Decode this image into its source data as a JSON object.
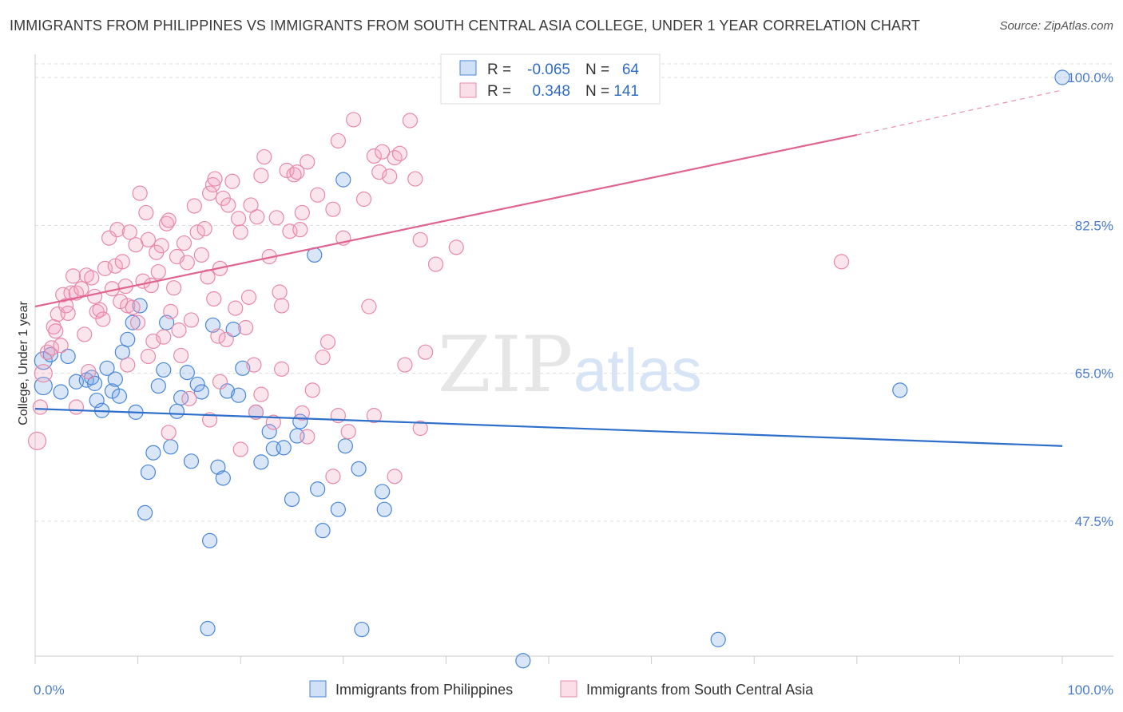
{
  "title": "IMMIGRANTS FROM PHILIPPINES VS IMMIGRANTS FROM SOUTH CENTRAL ASIA COLLEGE, UNDER 1 YEAR CORRELATION CHART",
  "source": "Source: ZipAtlas.com",
  "watermark": {
    "zip": "ZIP",
    "atlas": "atlas"
  },
  "colors": {
    "blue": "#4a86d8",
    "blue_fill": "rgba(120,165,230,0.28)",
    "blue_line": "#2f6fcc",
    "pink": "#e889a8",
    "pink_fill": "rgba(240,160,190,0.28)",
    "pink_line": "#e0648f",
    "grid": "#dddddd",
    "tick_label": "#4a7cc9"
  },
  "legend": {
    "r_label": "R =",
    "n_label": "N =",
    "rows": [
      {
        "r": "-0.065",
        "n": "64"
      },
      {
        "r": "0.348",
        "n": "141"
      }
    ]
  },
  "chart_data": {
    "type": "scatter",
    "title": "IMMIGRANTS FROM PHILIPPINES VS IMMIGRANTS FROM SOUTH CENTRAL ASIA COLLEGE, UNDER 1 YEAR CORRELATION CHART",
    "xlabel": "",
    "ylabel": "College, Under 1 year",
    "xlim": [
      0,
      100
    ],
    "ylim": [
      32,
      102
    ],
    "x_tick_labels": [
      "0.0%",
      "100.0%"
    ],
    "y_ticks": [
      47.5,
      65.0,
      82.5,
      100.0
    ],
    "y_tick_labels": [
      "47.5%",
      "65.0%",
      "82.5%",
      "100.0%"
    ],
    "grid": true,
    "legend_position": "top-center",
    "series": [
      {
        "name": "Immigrants from Philippines",
        "color": "#4a86d8",
        "trend": {
          "x0": 0,
          "y0": 60.8,
          "x1": 100,
          "y1": 56.4
        },
        "points": [
          [
            0.8,
            66.5
          ],
          [
            0.8,
            63.5
          ],
          [
            1.5,
            67.2
          ],
          [
            2.5,
            62.8
          ],
          [
            3.2,
            67.0
          ],
          [
            4.0,
            64.0
          ],
          [
            5.0,
            64.2
          ],
          [
            5.5,
            64.5
          ],
          [
            5.8,
            63.8
          ],
          [
            6.0,
            61.8
          ],
          [
            6.5,
            60.6
          ],
          [
            7.0,
            65.6
          ],
          [
            7.5,
            62.9
          ],
          [
            7.8,
            64.3
          ],
          [
            8.2,
            62.3
          ],
          [
            8.5,
            67.5
          ],
          [
            9.5,
            71.0
          ],
          [
            9.8,
            60.4
          ],
          [
            10.2,
            73.0
          ],
          [
            10.7,
            48.5
          ],
          [
            11.0,
            53.3
          ],
          [
            11.5,
            55.6
          ],
          [
            12.5,
            65.4
          ],
          [
            12.8,
            71.0
          ],
          [
            13.2,
            56.3
          ],
          [
            13.8,
            60.5
          ],
          [
            14.2,
            62.1
          ],
          [
            14.8,
            65.1
          ],
          [
            15.2,
            54.6
          ],
          [
            15.8,
            63.7
          ],
          [
            16.2,
            62.8
          ],
          [
            17.0,
            45.2
          ],
          [
            17.3,
            70.7
          ],
          [
            17.8,
            53.9
          ],
          [
            18.3,
            52.6
          ],
          [
            18.7,
            62.9
          ],
          [
            19.3,
            70.2
          ],
          [
            19.8,
            62.4
          ],
          [
            20.2,
            65.6
          ],
          [
            21.5,
            60.4
          ],
          [
            22.0,
            54.5
          ],
          [
            22.8,
            58.1
          ],
          [
            23.2,
            56.1
          ],
          [
            24.2,
            56.2
          ],
          [
            25.0,
            50.1
          ],
          [
            25.5,
            57.6
          ],
          [
            25.8,
            59.3
          ],
          [
            27.2,
            79.0
          ],
          [
            27.5,
            51.3
          ],
          [
            28.0,
            46.4
          ],
          [
            29.5,
            48.9
          ],
          [
            30.0,
            87.9
          ],
          [
            30.2,
            56.4
          ],
          [
            31.5,
            53.7
          ],
          [
            33.8,
            51.0
          ],
          [
            34.0,
            48.9
          ],
          [
            16.8,
            34.8
          ],
          [
            31.8,
            34.7
          ],
          [
            47.5,
            31.0
          ],
          [
            66.5,
            33.5
          ],
          [
            84.2,
            63.0
          ],
          [
            100.0,
            100.0
          ],
          [
            12.0,
            63.5
          ],
          [
            9.0,
            69.0
          ]
        ]
      },
      {
        "name": "Immigrants from South Central Asia",
        "color": "#e889a8",
        "trend": {
          "x0": 0,
          "y0": 72.9,
          "x1": 80,
          "y1": 93.2,
          "x_dash_end": 100,
          "y_dash_end": 98.5
        },
        "points": [
          [
            0.2,
            57.0
          ],
          [
            0.5,
            61.0
          ],
          [
            0.8,
            65.0
          ],
          [
            1.2,
            67.5
          ],
          [
            1.6,
            68.0
          ],
          [
            1.8,
            70.5
          ],
          [
            2.0,
            70.0
          ],
          [
            2.2,
            72.0
          ],
          [
            2.5,
            68.3
          ],
          [
            2.7,
            74.3
          ],
          [
            3.0,
            73.0
          ],
          [
            3.2,
            72.1
          ],
          [
            3.5,
            74.5
          ],
          [
            3.7,
            76.5
          ],
          [
            4.0,
            74.5
          ],
          [
            4.5,
            75.0
          ],
          [
            4.8,
            69.6
          ],
          [
            5.0,
            76.6
          ],
          [
            5.2,
            65.2
          ],
          [
            5.5,
            76.3
          ],
          [
            5.8,
            74.1
          ],
          [
            6.0,
            72.3
          ],
          [
            6.3,
            72.5
          ],
          [
            6.6,
            71.4
          ],
          [
            6.8,
            77.4
          ],
          [
            7.2,
            81.0
          ],
          [
            7.5,
            75.0
          ],
          [
            7.8,
            77.7
          ],
          [
            8.0,
            82.0
          ],
          [
            8.3,
            73.5
          ],
          [
            8.5,
            78.2
          ],
          [
            8.8,
            75.3
          ],
          [
            9.0,
            73.0
          ],
          [
            9.2,
            81.7
          ],
          [
            9.5,
            72.8
          ],
          [
            9.8,
            80.2
          ],
          [
            10.0,
            71.0
          ],
          [
            10.2,
            86.3
          ],
          [
            10.5,
            75.9
          ],
          [
            10.8,
            84.0
          ],
          [
            11.0,
            80.8
          ],
          [
            11.3,
            75.4
          ],
          [
            11.5,
            68.8
          ],
          [
            11.8,
            79.3
          ],
          [
            12.0,
            77.0
          ],
          [
            12.3,
            80.1
          ],
          [
            12.5,
            69.3
          ],
          [
            12.8,
            82.7
          ],
          [
            13.0,
            83.1
          ],
          [
            13.2,
            72.3
          ],
          [
            13.5,
            75.1
          ],
          [
            13.8,
            78.8
          ],
          [
            14.0,
            70.1
          ],
          [
            14.2,
            67.1
          ],
          [
            14.5,
            80.4
          ],
          [
            14.8,
            78.1
          ],
          [
            15.2,
            71.3
          ],
          [
            15.5,
            84.8
          ],
          [
            15.8,
            81.7
          ],
          [
            16.2,
            79.0
          ],
          [
            16.5,
            82.1
          ],
          [
            16.8,
            76.4
          ],
          [
            17.0,
            86.3
          ],
          [
            17.3,
            87.3
          ],
          [
            17.5,
            88.0
          ],
          [
            17.8,
            69.4
          ],
          [
            18.0,
            77.4
          ],
          [
            18.3,
            85.7
          ],
          [
            18.6,
            69.0
          ],
          [
            18.8,
            84.9
          ],
          [
            19.2,
            87.7
          ],
          [
            19.5,
            72.7
          ],
          [
            19.8,
            83.3
          ],
          [
            20.0,
            81.7
          ],
          [
            20.5,
            70.4
          ],
          [
            20.8,
            74.0
          ],
          [
            21.0,
            84.9
          ],
          [
            21.3,
            66.0
          ],
          [
            21.6,
            83.5
          ],
          [
            22.0,
            88.4
          ],
          [
            22.3,
            90.6
          ],
          [
            22.8,
            78.8
          ],
          [
            23.2,
            59.2
          ],
          [
            23.5,
            83.4
          ],
          [
            23.8,
            74.6
          ],
          [
            24.0,
            73.0
          ],
          [
            24.5,
            89.0
          ],
          [
            24.8,
            81.8
          ],
          [
            25.2,
            88.5
          ],
          [
            25.5,
            88.8
          ],
          [
            25.8,
            82.0
          ],
          [
            26.0,
            84.0
          ],
          [
            26.5,
            90.0
          ],
          [
            27.5,
            86.1
          ],
          [
            28.0,
            66.9
          ],
          [
            28.5,
            68.7
          ],
          [
            29.0,
            84.4
          ],
          [
            29.5,
            92.5
          ],
          [
            30.0,
            81.0
          ],
          [
            30.5,
            58.1
          ],
          [
            31.0,
            95.0
          ],
          [
            32.0,
            85.6
          ],
          [
            32.5,
            72.9
          ],
          [
            33.0,
            90.7
          ],
          [
            33.5,
            88.8
          ],
          [
            33.8,
            91.2
          ],
          [
            34.5,
            88.3
          ],
          [
            35.0,
            90.5
          ],
          [
            35.5,
            91.0
          ],
          [
            36.0,
            66.0
          ],
          [
            36.5,
            94.9
          ],
          [
            37.0,
            88.0
          ],
          [
            37.5,
            80.8
          ],
          [
            38.0,
            67.5
          ],
          [
            39.0,
            77.9
          ],
          [
            41.0,
            79.9
          ],
          [
            17.4,
            73.8
          ],
          [
            21.5,
            60.4
          ],
          [
            26.0,
            60.3
          ],
          [
            29.0,
            52.8
          ],
          [
            35.0,
            52.8
          ],
          [
            78.5,
            78.2
          ],
          [
            24.0,
            65.5
          ],
          [
            18.0,
            64.0
          ],
          [
            22.0,
            62.5
          ],
          [
            27.0,
            63.0
          ],
          [
            11.0,
            67.0
          ],
          [
            15.0,
            62.0
          ],
          [
            20.0,
            56.0
          ],
          [
            33.0,
            60.0
          ],
          [
            26.5,
            57.5
          ],
          [
            29.5,
            60.0
          ],
          [
            37.5,
            58.5
          ],
          [
            9.0,
            66.0
          ],
          [
            4.0,
            61.0
          ],
          [
            13.0,
            58.0
          ],
          [
            17.0,
            59.5
          ]
        ]
      }
    ]
  },
  "bottom_legend": [
    "Immigrants from Philippines",
    "Immigrants from South Central Asia"
  ]
}
